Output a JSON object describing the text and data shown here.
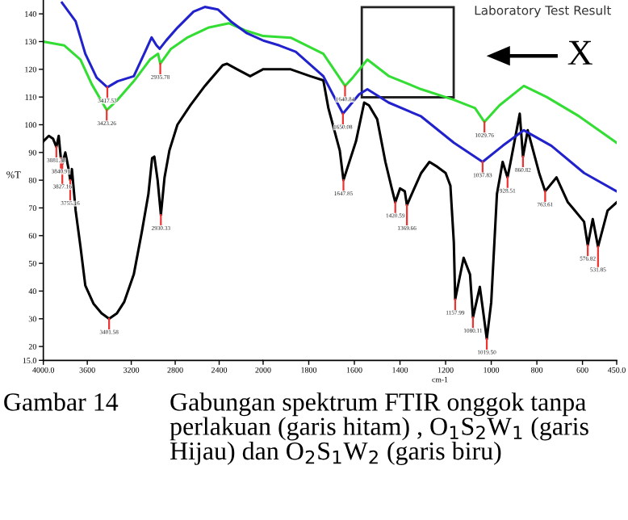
{
  "chart_data": [
    {
      "type": "line",
      "ylabel": "%T",
      "xlim": [
        4000,
        2000
      ],
      "xticks": [
        {
          "value": 4000,
          "label": "4000.0"
        },
        3600,
        3200,
        2800,
        2400
      ],
      "ylim": [
        15,
        145
      ],
      "yticks": [
        {
          "value": 15,
          "label": "15.0"
        },
        20,
        30,
        40,
        50,
        60,
        70,
        80,
        90,
        100,
        110,
        120,
        130,
        140
      ],
      "grid": false,
      "legend": false,
      "marker": "none",
      "line_style": "solid",
      "series": [
        {
          "color": "#000000",
          "x": [
            4000,
            3950,
            3912,
            3881.38,
            3860,
            3840.91,
            3827.16,
            3800,
            3770,
            3755.16,
            3740,
            3706,
            3662,
            3618,
            3544,
            3470,
            3401.58,
            3330,
            3265,
            3177,
            3103,
            3044,
            3010,
            2990,
            2960,
            2930.33,
            2897,
            2853,
            2780,
            2662,
            2530,
            2368,
            2330,
            2236,
            2118,
            2000
          ],
          "values": [
            94,
            96,
            95,
            92,
            96,
            88,
            86,
            90,
            84,
            80,
            84,
            69,
            56,
            42,
            35.5,
            32,
            30,
            32,
            36,
            46,
            61.5,
            75,
            88,
            88.5,
            80,
            67.5,
            81,
            90.7,
            100,
            107,
            114,
            121.5,
            122,
            120,
            117.5,
            120
          ]
        },
        {
          "color": "#33dd33",
          "x": [
            4000,
            3809,
            3662,
            3559,
            3423.26,
            3324,
            3177,
            3030,
            2956,
            2935.78,
            2838,
            2692,
            2500,
            2309,
            2162,
            2000
          ],
          "values": [
            130,
            128.6,
            123.5,
            114.6,
            105.3,
            109,
            115.7,
            123.5,
            125.6,
            122,
            127.4,
            131.4,
            135,
            136.6,
            134,
            132
          ]
        },
        {
          "color": "#2222cc",
          "x": [
            3830,
            3706,
            3618,
            3515,
            3417.53,
            3324,
            3177,
            3074,
            3015,
            2970,
            2941,
            2882,
            2780,
            2633,
            2530,
            2412,
            2294,
            2147,
            2000
          ],
          "values": [
            144,
            137.3,
            125.6,
            117,
            113.5,
            115.7,
            117.5,
            126.3,
            131.5,
            128.6,
            127.4,
            130.4,
            135,
            140.8,
            142.5,
            141.6,
            137.3,
            133,
            130.4
          ]
        }
      ],
      "annotations": [
        {
          "text": "3417.53",
          "x": 3417.53,
          "y": 113.5
        },
        {
          "text": "3423.26",
          "x": 3423.26,
          "y": 105.3
        },
        {
          "text": "2935.78",
          "x": 2935.78,
          "y": 122
        },
        {
          "text": "3881.38",
          "x": 3881.38,
          "y": 92
        },
        {
          "text": "3840.91",
          "x": 3840.91,
          "y": 88
        },
        {
          "text": "3827.16",
          "x": 3827.16,
          "y": 86
        },
        {
          "text": "3755.16",
          "x": 3755.16,
          "y": 80
        },
        {
          "text": "3401.58",
          "x": 3401.58,
          "y": 30
        },
        {
          "text": "2930.33",
          "x": 2930.33,
          "y": 67.5
        }
      ]
    },
    {
      "type": "line",
      "title": "Laboratory Test Result",
      "xlabel": "cm-1",
      "tick_labels": "x",
      "xlim": [
        2000,
        450
      ],
      "xticks": [
        2000,
        1800,
        1600,
        1400,
        1200,
        1000,
        800,
        600,
        {
          "value": 450,
          "label": "450.0"
        }
      ],
      "ylim": [
        15,
        145
      ],
      "grid": false,
      "legend": false,
      "marker": "none",
      "line_style": "solid",
      "series": [
        {
          "color": "#000000",
          "x": [
            2000,
            1879,
            1793,
            1736,
            1714,
            1664,
            1647.85,
            1593,
            1557,
            1536,
            1500,
            1464,
            1436,
            1420.59,
            1400,
            1379,
            1369.66,
            1343,
            1307,
            1271,
            1236,
            1200,
            1179,
            1164,
            1157.99,
            1121,
            1093,
            1080.11,
            1050,
            1036,
            1019.5,
            1000,
            975,
            950,
            928.51,
            915,
            875,
            860.82,
            840,
            790,
            763.61,
            714,
            664,
            643,
            593,
            576.82,
            555,
            531.85,
            490,
            450
          ],
          "values": [
            120,
            120,
            117.5,
            116,
            106,
            90.7,
            80,
            94,
            108,
            107,
            102,
            86.6,
            77,
            72,
            77,
            76,
            71,
            76,
            82.6,
            86.6,
            84.8,
            82.6,
            78,
            57.6,
            37,
            52,
            46,
            30.5,
            41.5,
            33,
            22.7,
            36,
            75,
            86.6,
            81,
            86.6,
            104,
            88.5,
            98,
            82.6,
            76,
            81,
            72,
            70,
            65,
            56.5,
            66,
            56,
            69,
            72
          ]
        },
        {
          "color": "#33dd33",
          "x": [
            2000,
            1879,
            1736,
            1640.84,
            1607,
            1543,
            1450,
            1307,
            1164,
            1071,
            1029.76,
            964,
            857,
            757,
            614,
            450
          ],
          "values": [
            132,
            131.4,
            125.6,
            114,
            117,
            123.5,
            117.6,
            112.8,
            109,
            106,
            101,
            107,
            114,
            110,
            103,
            93.5
          ]
        },
        {
          "color": "#2222cc",
          "x": [
            2000,
            1929,
            1857,
            1736,
            1650.08,
            1579,
            1543,
            1450,
            1307,
            1164,
            1037.83,
            950,
            857,
            736,
            593,
            450
          ],
          "values": [
            130.4,
            128.6,
            126.3,
            117.5,
            104,
            111,
            112.8,
            108,
            103,
            93.5,
            86.6,
            92.4,
            98,
            92.4,
            82.6,
            76
          ]
        }
      ],
      "annotations": [
        "X",
        "Gambar 14",
        "Gabungan spektrum FTIR onggok tanpa perlakuan (garis hitam) , O$_{1}$S$_{2}$W$_{1}$ (garis Hijau) dan O$_{2}$S$_{1}$W$_{2}$ (garis biru)",
        {
          "text": "1640.84",
          "x": 1640.84,
          "y": 114
        },
        {
          "text": "1650.08",
          "x": 1650.08,
          "y": 104
        },
        {
          "text": "1029.76",
          "x": 1029.76,
          "y": 101
        },
        {
          "text": "1037.83",
          "x": 1037.83,
          "y": 86.6
        },
        {
          "text": "1647.85",
          "x": 1647.85,
          "y": 80
        },
        {
          "text": "1420.59",
          "x": 1420.59,
          "y": 72
        },
        {
          "text": "1369.66",
          "x": 1369.66,
          "y": 71
        },
        {
          "text": "1157.99",
          "x": 1157.99,
          "y": 37
        },
        {
          "text": "1080.11",
          "x": 1080.11,
          "y": 30.5
        },
        {
          "text": "1019.50",
          "x": 1019.5,
          "y": 22.7
        },
        {
          "text": "928.51",
          "x": 928.51,
          "y": 81
        },
        {
          "text": "860.82",
          "x": 860.82,
          "y": 88.5
        },
        {
          "text": "763.61",
          "x": 763.61,
          "y": 76
        },
        {
          "text": "576.82",
          "x": 576.82,
          "y": 56.5
        },
        {
          "text": "531.85",
          "x": 531.85,
          "y": 56
        }
      ]
    }
  ]
}
